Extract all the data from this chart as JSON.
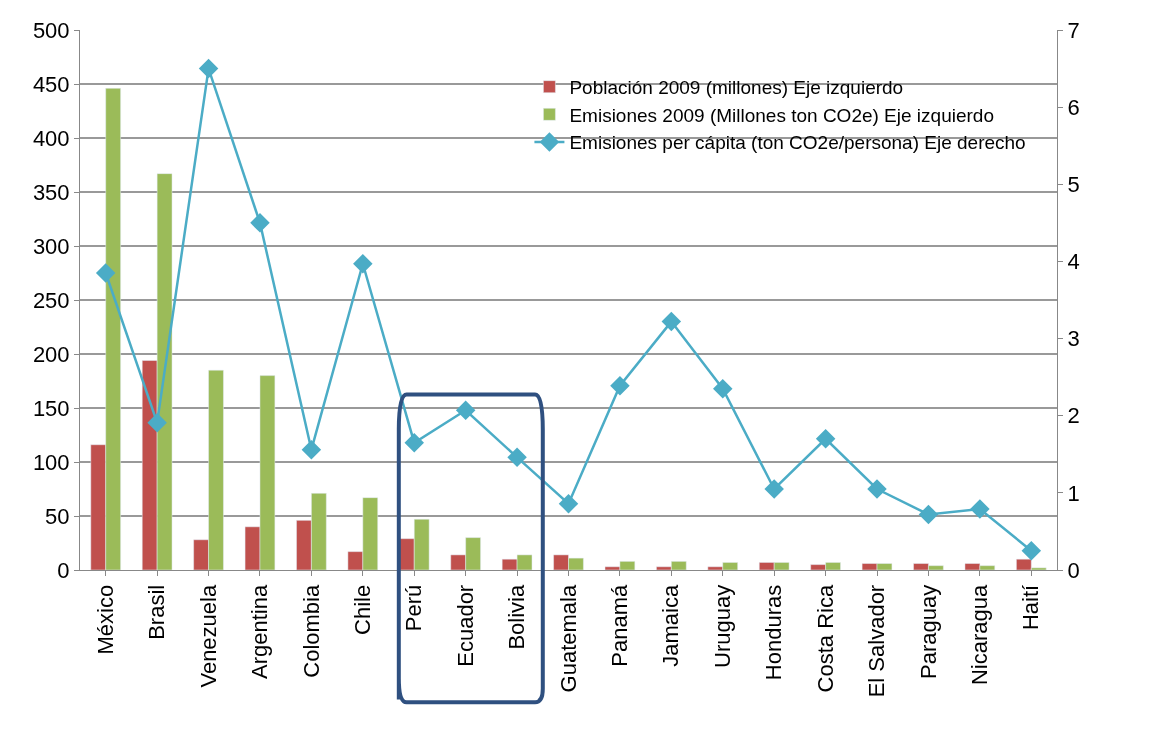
{
  "chart_data": {
    "type": "bar",
    "categories": [
      "México",
      "Brasil",
      "Venezuela",
      "Argentina",
      "Colombia",
      "Chile",
      "Perú",
      "Ecuador",
      "Bolivia",
      "Guatemala",
      "Panamá",
      "Jamaica",
      "Uruguay",
      "Honduras",
      "Costa Rica",
      "El Salvador",
      "Paraguay",
      "Nicaragua",
      "Haití"
    ],
    "series": [
      {
        "name": "Población 2009 (millones) Eje izquierdo",
        "color": "#c0504d",
        "values": [
          116,
          194,
          28,
          40,
          46,
          17,
          29,
          14,
          10,
          14,
          3,
          3,
          3,
          7,
          5,
          6,
          6,
          6,
          10
        ]
      },
      {
        "name": "Emisiones 2009 (Millones ton CO2e) Eje izquierdo",
        "color": "#9bbb59",
        "values": [
          446,
          367,
          185,
          180,
          71,
          67,
          47,
          30,
          14,
          11,
          8,
          8,
          7,
          7,
          7,
          6,
          4,
          4,
          2
        ]
      },
      {
        "name": "Emisiones per cápita (ton CO2e/persona) Eje derecho",
        "type": "line",
        "axis": "y2",
        "marker": "diamond",
        "color": "#4bacc6",
        "values": [
          3.85,
          1.91,
          6.5,
          4.5,
          1.56,
          3.97,
          1.65,
          2.07,
          1.46,
          0.86,
          2.39,
          3.22,
          2.35,
          1.05,
          1.7,
          1.05,
          0.72,
          0.79,
          0.25
        ]
      }
    ],
    "ylim": [
      0,
      500
    ],
    "yticks": [
      0,
      50,
      100,
      150,
      200,
      250,
      300,
      350,
      400,
      450,
      500
    ],
    "y2lim": [
      0,
      7
    ],
    "y2ticks": [
      0,
      1,
      2,
      3,
      4,
      5,
      6,
      7
    ],
    "grid": "y",
    "legend": "top right"
  }
}
